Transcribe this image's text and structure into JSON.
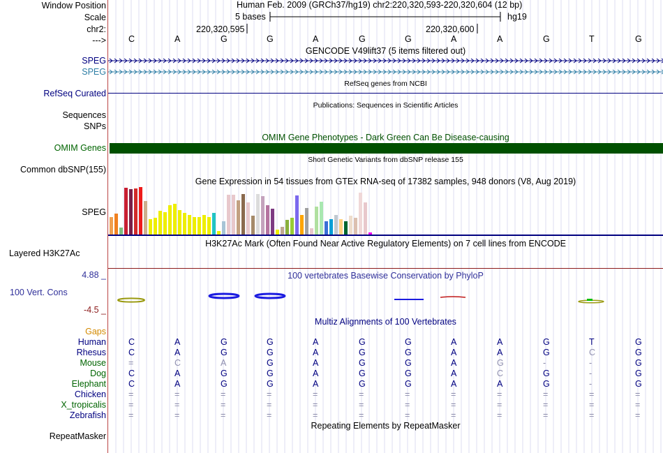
{
  "header": {
    "window_position_label": "Window Position",
    "scale_label": "Scale",
    "chrom_label": "chr2:",
    "strand_label": "--->",
    "position_text": "Human Feb. 2009 (GRCh37/hg19)   chr2:220,320,593-220,320,604 (12 bp)",
    "scale_text": "5 bases",
    "assembly": "hg19",
    "coord_left": "220,320,595",
    "coord_right": "220,320,600"
  },
  "bases": [
    "C",
    "A",
    "G",
    "G",
    "A",
    "G",
    "G",
    "A",
    "A",
    "G",
    "T",
    "G"
  ],
  "tracks": {
    "gencode_title": "GENCODE V49lift37 (5 items filtered out)",
    "gencode_item1": "SPEG",
    "gencode_item2": "SPEG",
    "refseq_label": "RefSeq Curated",
    "refseq_title": "RefSeq genes from NCBI",
    "pubs_title": "Publications: Sequences in Scientific Articles",
    "sequences_label": "Sequences",
    "snps_label": "SNPs",
    "omim_title": "OMIM Gene Phenotypes - Dark Green Can Be Disease-causing",
    "omim_label": "OMIM Genes",
    "dbsnp_title": "Short Genetic Variants from dbSNP release 155",
    "dbsnp_label": "Common dbSNP(155)",
    "gtex_title": "Gene Expression in 54 tissues from GTEx RNA-seq of 17382 samples, 948 donors (V8, Aug 2019)",
    "gtex_label": "SPEG",
    "h3k27_title": "H3K27Ac Mark (Often Found Near Active Regulatory Elements) on 7 cell lines from ENCODE",
    "h3k27_label": "Layered H3K27Ac",
    "cons_max": "4.88 _",
    "cons_label": "100 Vert. Cons",
    "cons_min": "-4.5 _",
    "cons_title": "100 vertebrates Basewise Conservation by PhyloP",
    "gaps_label": "Gaps",
    "multiz_title": "Multiz Alignments of 100 Vertebrates",
    "rmsk_title": "Repeating Elements by RepeatMasker",
    "rmsk_label": "RepeatMasker"
  },
  "colors": {
    "navy": "#000080",
    "steel": "#2f7fa6",
    "omim_green": "#005000",
    "mammal_green": "#006400",
    "phylop_blue": "#30309a",
    "phylop_red": "#8b1a1a",
    "gaps_orange": "#d38a00",
    "grid": "#dcdcf0"
  },
  "gtex_bars": [
    {
      "v": 0.38,
      "c": "#f0a050"
    },
    {
      "v": 0.45,
      "c": "#f08020"
    },
    {
      "v": 0.15,
      "c": "#7fbf7f"
    },
    {
      "v": 1.0,
      "c": "#c81e32"
    },
    {
      "v": 0.97,
      "c": "#7a1f48"
    },
    {
      "v": 0.98,
      "c": "#d12a2a"
    },
    {
      "v": 1.02,
      "c": "#ee1b1b"
    },
    {
      "v": 0.72,
      "c": "#cdb08e"
    },
    {
      "v": 0.33,
      "c": "#eeee00"
    },
    {
      "v": 0.36,
      "c": "#eeee00"
    },
    {
      "v": 0.5,
      "c": "#eeee00"
    },
    {
      "v": 0.48,
      "c": "#eeee00"
    },
    {
      "v": 0.63,
      "c": "#eeee00"
    },
    {
      "v": 0.65,
      "c": "#eeee00"
    },
    {
      "v": 0.52,
      "c": "#eeee00"
    },
    {
      "v": 0.47,
      "c": "#eeee00"
    },
    {
      "v": 0.42,
      "c": "#eeee00"
    },
    {
      "v": 0.38,
      "c": "#eeee00"
    },
    {
      "v": 0.38,
      "c": "#eeee00"
    },
    {
      "v": 0.42,
      "c": "#eeee00"
    },
    {
      "v": 0.38,
      "c": "#eeee00"
    },
    {
      "v": 0.47,
      "c": "#22c4c4"
    },
    {
      "v": 0.08,
      "c": "#eeee00"
    },
    {
      "v": 0.28,
      "c": "#a7c4d6"
    },
    {
      "v": 0.85,
      "c": "#e8c8cc"
    },
    {
      "v": 0.85,
      "c": "#e8c8cc"
    },
    {
      "v": 0.73,
      "c": "#c2a081"
    },
    {
      "v": 0.87,
      "c": "#8a6a4e"
    },
    {
      "v": 0.68,
      "c": "#e8c8cc"
    },
    {
      "v": 0.4,
      "c": "#a58a6a"
    },
    {
      "v": 0.87,
      "c": "#dcdcdc"
    },
    {
      "v": 0.82,
      "c": "#c4a3bd"
    },
    {
      "v": 0.62,
      "c": "#b5739f"
    },
    {
      "v": 0.55,
      "c": "#7d3a82"
    },
    {
      "v": 0.1,
      "c": "#eeee00"
    },
    {
      "v": 0.16,
      "c": "#c0a890"
    },
    {
      "v": 0.32,
      "c": "#8ab03c"
    },
    {
      "v": 0.36,
      "c": "#99cc33"
    },
    {
      "v": 0.83,
      "c": "#7b68ee"
    },
    {
      "v": 0.42,
      "c": "#ffa500"
    },
    {
      "v": 0.56,
      "c": "#a0a0a0"
    },
    {
      "v": 0.13,
      "c": "#e8c8cc"
    },
    {
      "v": 0.6,
      "c": "#b0e0a0"
    },
    {
      "v": 0.7,
      "c": "#a9e8b0"
    },
    {
      "v": 0.28,
      "c": "#3a6fd6"
    },
    {
      "v": 0.33,
      "c": "#0a9fd6"
    },
    {
      "v": 0.42,
      "c": "#c0c8d0"
    },
    {
      "v": 0.33,
      "c": "#ffd280"
    },
    {
      "v": 0.28,
      "c": "#006630"
    },
    {
      "v": 0.4,
      "c": "#eeddcc"
    },
    {
      "v": 0.36,
      "c": "#dcc0b0"
    },
    {
      "v": 0.9,
      "c": "#f0d8d8"
    },
    {
      "v": 0.68,
      "c": "#e8c8cc"
    },
    {
      "v": 0.04,
      "c": "#ee00ee"
    }
  ],
  "multiz": {
    "species": [
      {
        "name": "Human",
        "group": "primate",
        "row": [
          "C",
          "A",
          "G",
          "G",
          "A",
          "G",
          "G",
          "A",
          "A",
          "G",
          "T",
          "G"
        ]
      },
      {
        "name": "Rhesus",
        "group": "primate",
        "row": [
          "C",
          "A",
          "G",
          "G",
          "A",
          "G",
          "G",
          "A",
          "A",
          "G",
          "C",
          "G"
        ]
      },
      {
        "name": "Mouse",
        "group": "mammal",
        "row": [
          "=",
          "C",
          "A",
          "G",
          "A",
          "G",
          "G",
          "A",
          "G",
          "-",
          "-",
          "G"
        ]
      },
      {
        "name": "Dog",
        "group": "mammal",
        "row": [
          "C",
          "A",
          "G",
          "G",
          "A",
          "G",
          "G",
          "A",
          "C",
          "G",
          "-",
          "G"
        ]
      },
      {
        "name": "Elephant",
        "group": "mammal",
        "row": [
          "C",
          "A",
          "G",
          "G",
          "A",
          "G",
          "G",
          "A",
          "A",
          "G",
          "-",
          "G"
        ]
      },
      {
        "name": "Chicken",
        "group": "other",
        "row": [
          "=",
          "=",
          "=",
          "=",
          "=",
          "=",
          "=",
          "=",
          "=",
          "=",
          "=",
          "="
        ]
      },
      {
        "name": "X_tropicalis",
        "group": "other",
        "row": [
          "=",
          "=",
          "=",
          "=",
          "=",
          "=",
          "=",
          "=",
          "=",
          "=",
          "=",
          "="
        ]
      },
      {
        "name": "Zebrafish",
        "group": "other",
        "row": [
          "=",
          "=",
          "=",
          "=",
          "=",
          "=",
          "=",
          "=",
          "=",
          "=",
          "=",
          "="
        ]
      }
    ]
  }
}
